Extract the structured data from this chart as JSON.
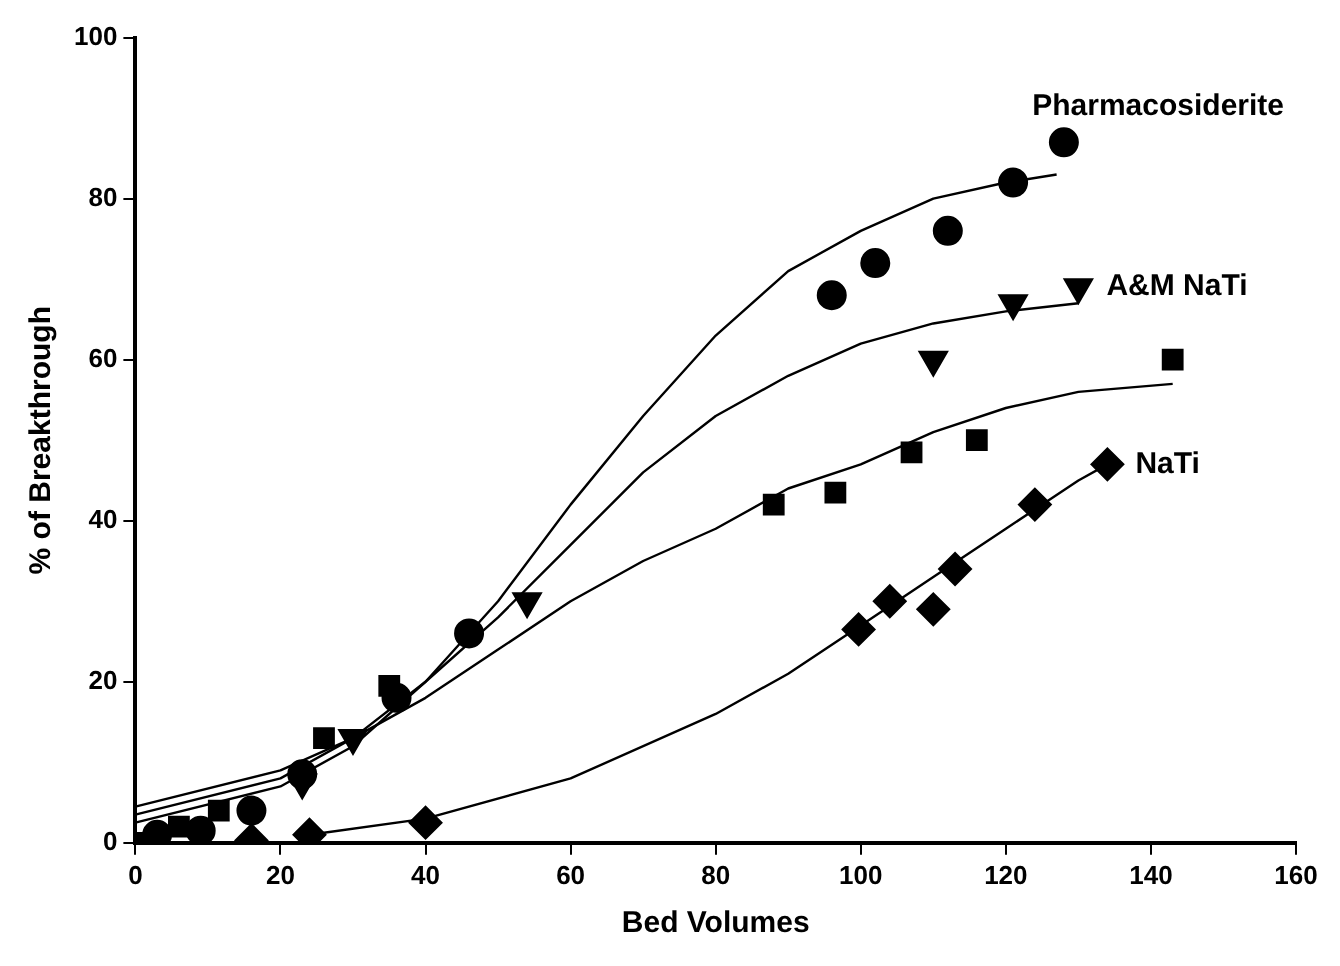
{
  "chart_data": {
    "type": "scatter",
    "xlabel": "Bed Volumes",
    "ylabel": "% of Breakthrough",
    "xlim": [
      0,
      160
    ],
    "xticks": [
      0,
      20,
      40,
      60,
      80,
      100,
      120,
      140,
      160
    ],
    "ylim": [
      0,
      100
    ],
    "yticks": [
      0,
      20,
      40,
      60,
      80,
      100
    ],
    "grid": false,
    "legend": false,
    "series": [
      {
        "name": "Pharmacosiderite",
        "color": "#000000",
        "marker": "circle",
        "x": [
          3,
          9,
          16,
          23,
          36,
          46,
          96,
          102,
          112,
          121,
          128
        ],
        "values": [
          1,
          1.5,
          4,
          8.5,
          18,
          26,
          68,
          72,
          76,
          82,
          87
        ]
      },
      {
        "name": "A&M NaTi",
        "color": "#000000",
        "marker": "triangle",
        "x": [
          23,
          30,
          54,
          110,
          121,
          130
        ],
        "values": [
          7.5,
          13,
          30,
          60,
          67,
          69
        ]
      },
      {
        "color": "#000000",
        "marker": "square",
        "x": [
          0,
          6,
          11.5,
          26,
          35,
          88,
          96.5,
          107,
          116,
          143
        ],
        "values": [
          0,
          2,
          4,
          13,
          19.5,
          42,
          43.5,
          48.5,
          50,
          60
        ]
      },
      {
        "name": "NaTi",
        "color": "#000000",
        "marker": "diamond",
        "x": [
          16,
          24,
          40,
          99.7,
          104,
          110,
          113,
          124,
          134
        ],
        "values": [
          0.3,
          1,
          2.5,
          26.5,
          30,
          29,
          34,
          42,
          47
        ]
      },
      {
        "type": "line",
        "color": "#000000",
        "marker": "none",
        "x": [
          0,
          20,
          30,
          40,
          50,
          60,
          70,
          80,
          90,
          100,
          110,
          120,
          127
        ],
        "values": [
          2.5,
          7,
          12,
          20,
          30,
          42,
          53,
          63,
          71,
          76,
          80,
          82,
          83
        ]
      },
      {
        "type": "line",
        "color": "#000000",
        "marker": "none",
        "x": [
          0,
          20,
          30,
          40,
          50,
          60,
          70,
          80,
          90,
          100,
          110,
          120,
          130
        ],
        "values": [
          3.5,
          8,
          13,
          20,
          28,
          37,
          46,
          53,
          58,
          62,
          64.5,
          66,
          67
        ]
      },
      {
        "type": "line",
        "color": "#000000",
        "marker": "none",
        "x": [
          0,
          20,
          30,
          40,
          50,
          60,
          70,
          80,
          90,
          100,
          110,
          120,
          130,
          143
        ],
        "values": [
          4.5,
          9,
          13,
          18,
          24,
          30,
          35,
          39,
          44,
          47,
          51,
          54,
          56,
          57
        ]
      },
      {
        "type": "line",
        "color": "#000000",
        "marker": "none",
        "x": [
          24,
          40,
          60,
          80,
          90,
          100,
          110,
          120,
          130,
          134
        ],
        "values": [
          1,
          3,
          8,
          16,
          21,
          27,
          33,
          39,
          45,
          47
        ]
      }
    ]
  }
}
